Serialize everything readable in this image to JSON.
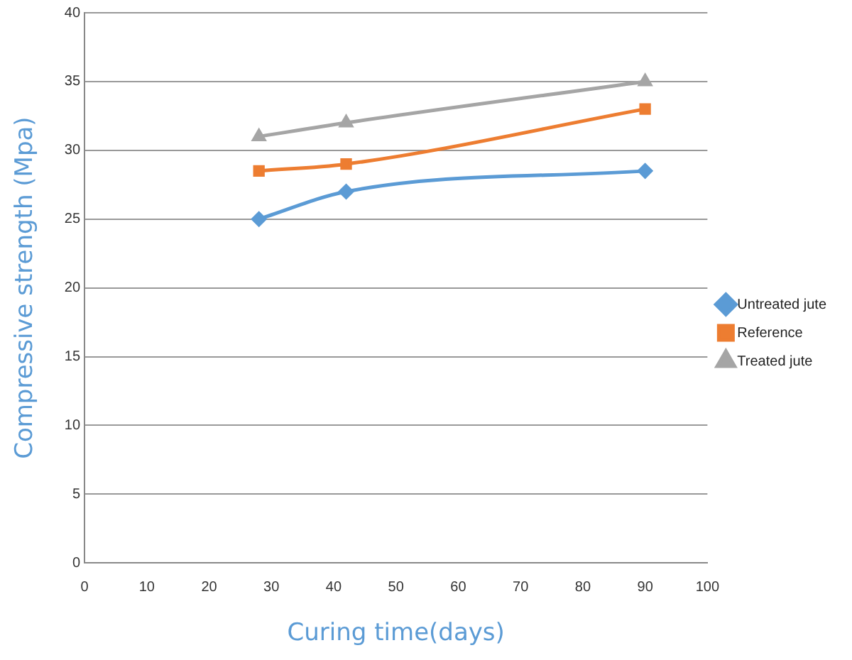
{
  "chart_data": {
    "type": "line",
    "xlabel": "Curing time(days)",
    "ylabel": "Compressive strength (Mpa)",
    "x": [
      28,
      42,
      90
    ],
    "series": [
      {
        "name": "Untreated jute",
        "color": "#5b9bd5",
        "marker": "diamond",
        "values": [
          25,
          27,
          28.5
        ]
      },
      {
        "name": "Reference",
        "color": "#ed7d31",
        "marker": "square",
        "values": [
          28.5,
          29,
          33
        ]
      },
      {
        "name": "Treated jute",
        "color": "#a5a5a5",
        "marker": "triangle",
        "values": [
          31,
          32,
          35
        ]
      }
    ],
    "xlim": [
      0,
      100
    ],
    "xticks": [
      0,
      10,
      20,
      30,
      40,
      50,
      60,
      70,
      80,
      90,
      100
    ],
    "ylim": [
      0,
      40
    ],
    "yticks": [
      0,
      5,
      10,
      15,
      20,
      25,
      30,
      35,
      40
    ],
    "grid": "y",
    "legend": "right"
  }
}
